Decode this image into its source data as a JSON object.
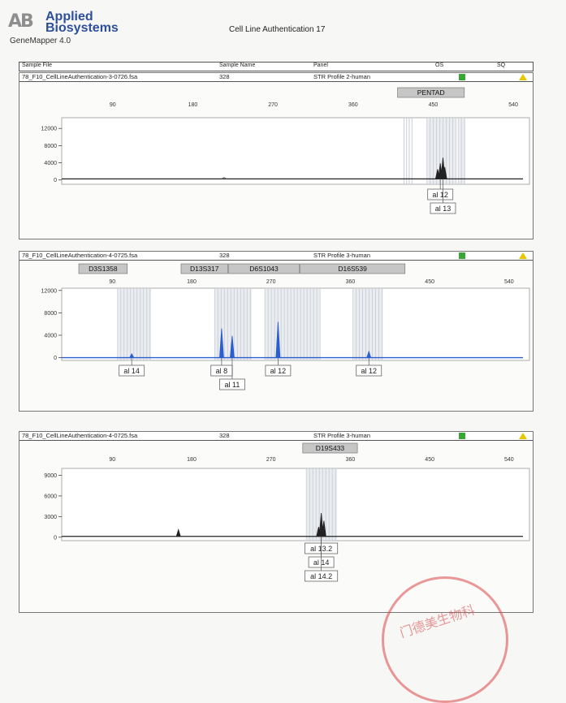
{
  "header": {
    "logo_mark": "AB",
    "brand_line1": "Applied",
    "brand_line2": "Biosystems",
    "product": "GeneMapper 4.0",
    "title": "Cell Line Authentication 17"
  },
  "columns": {
    "sample_file": "Sample File",
    "sample_name": "Sample Name",
    "panel": "Panel",
    "qs": "OS",
    "sq": "SQ"
  },
  "colors": {
    "ab_logo": "#8e8e8e",
    "brand": "#2e4f9c",
    "qs_green": "#38a832",
    "sq_yellow": "#e8c800",
    "blue_trace": "#2b5fd1",
    "black_trace": "#222222",
    "stamp_red": "#dc4646"
  },
  "stamp": {
    "text": "门德美生物科"
  },
  "chart_data": [
    {
      "type": "line",
      "sample_file": "78_F10_CellLineAuthentication-3-0726.fsa",
      "sample_name": "328",
      "panel": "STR Profile 2-human",
      "trace_color": "#222222",
      "xlim": [
        40,
        560
      ],
      "xticks": [
        "90",
        "180",
        "270",
        "360",
        "450",
        "540"
      ],
      "xtick_values": [
        90,
        180,
        270,
        360,
        450,
        540
      ],
      "ylim": [
        -1000,
        14500
      ],
      "yticks": [
        "12000",
        "8000",
        "4000",
        "0"
      ],
      "ytick_values": [
        12000,
        8000,
        4000,
        0
      ],
      "markers": [
        {
          "name": "PENTAD",
          "range": [
            410,
            485
          ]
        }
      ],
      "bins": [
        {
          "range": [
            417,
            418
          ]
        },
        {
          "range": [
            420,
            421
          ]
        },
        {
          "range": [
            423,
            424
          ]
        },
        {
          "range": [
            426,
            427
          ]
        },
        {
          "range": [
            443,
            476
          ]
        },
        {
          "range": [
            478,
            486
          ]
        }
      ],
      "peaks": [
        {
          "x": 455,
          "y": 2500
        },
        {
          "x": 458,
          "y": 3900
        },
        {
          "x": 461,
          "y": 5200
        },
        {
          "x": 463,
          "y": 3000
        }
      ],
      "baseline": 250,
      "noise": [
        {
          "x": 215,
          "y": 600
        }
      ],
      "alleles": [
        {
          "label": "al 12",
          "x": 458,
          "row": 0
        },
        {
          "label": "al 13",
          "x": 461,
          "row": 1
        }
      ]
    },
    {
      "type": "line",
      "sample_file": "78_F10_CellLineAuthentication-4-0725.fsa",
      "sample_name": "328",
      "panel": "STR Profile 3-human",
      "trace_color": "#2b5fd1",
      "xlim": [
        40,
        565
      ],
      "xticks": [
        "90",
        "180",
        "270",
        "360",
        "450",
        "540"
      ],
      "xtick_values": [
        90,
        180,
        270,
        360,
        450,
        540
      ],
      "ylim": [
        -500,
        12400
      ],
      "yticks": [
        "12000",
        "8000",
        "4000",
        "0"
      ],
      "ytick_values": [
        12000,
        8000,
        4000,
        0
      ],
      "markers": [
        {
          "name": "D3S1358",
          "range": [
            52,
            107
          ]
        },
        {
          "name": "D13S317",
          "range": [
            168,
            221
          ]
        },
        {
          "name": "D6S1043",
          "range": [
            222,
            302
          ]
        },
        {
          "name": "D16S539",
          "range": [
            303,
            422
          ]
        }
      ],
      "bins": [
        {
          "range": [
            96,
            134
          ]
        },
        {
          "range": [
            206,
            248
          ]
        },
        {
          "range": [
            263,
            326
          ]
        },
        {
          "range": [
            363,
            397
          ]
        }
      ],
      "peaks": [
        {
          "x": 112,
          "y": 700
        },
        {
          "x": 214,
          "y": 5200
        },
        {
          "x": 226,
          "y": 3900
        },
        {
          "x": 278,
          "y": 6400
        },
        {
          "x": 381,
          "y": 1100
        }
      ],
      "baseline": 0,
      "noise": [],
      "alleles": [
        {
          "label": "al 14",
          "x": 112,
          "row": 0
        },
        {
          "label": "al 8",
          "x": 214,
          "row": 0
        },
        {
          "label": "al 11",
          "x": 226,
          "row": 1
        },
        {
          "label": "al 12",
          "x": 278,
          "row": 0
        },
        {
          "label": "al 12",
          "x": 381,
          "row": 0
        }
      ]
    },
    {
      "type": "line",
      "sample_file": "78_F10_CellLineAuthentication-4-0725.fsa",
      "sample_name": "328",
      "panel": "STR Profile 3-human",
      "trace_color": "#222222",
      "xlim": [
        40,
        565
      ],
      "xticks": [
        "90",
        "180",
        "270",
        "360",
        "450",
        "540"
      ],
      "xtick_values": [
        90,
        180,
        270,
        360,
        450,
        540
      ],
      "ylim": [
        -500,
        10000
      ],
      "yticks": [
        "9000",
        "6000",
        "3000",
        "0"
      ],
      "ytick_values": [
        9000,
        6000,
        3000,
        0
      ],
      "markers": [
        {
          "name": "D19S433",
          "range": [
            306,
            368
          ]
        }
      ],
      "bins": [
        {
          "range": [
            310,
            345
          ]
        }
      ],
      "peaks": [
        {
          "x": 165,
          "y": 1100
        },
        {
          "x": 324,
          "y": 1500
        },
        {
          "x": 327,
          "y": 3500
        },
        {
          "x": 330,
          "y": 2400
        }
      ],
      "baseline": 120,
      "noise": [],
      "alleles": [
        {
          "label": "al 13.2",
          "x": 327,
          "row": 0
        },
        {
          "label": "al 14",
          "x": 327,
          "row": 1
        },
        {
          "label": "al 14.2",
          "x": 327,
          "row": 2
        }
      ]
    }
  ]
}
